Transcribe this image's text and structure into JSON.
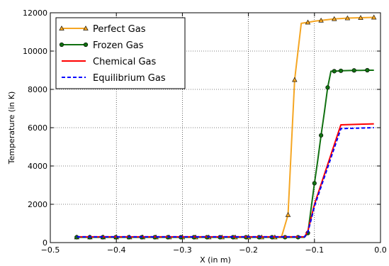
{
  "chart_data": {
    "type": "line",
    "title": "",
    "xlabel": "X (in m)",
    "ylabel": "Temperature (in K)",
    "xlim": [
      -0.5,
      0.0
    ],
    "ylim": [
      0,
      12000
    ],
    "xticks": [
      -0.5,
      -0.4,
      -0.3,
      -0.2,
      -0.1,
      0.0
    ],
    "xtick_labels": [
      "−0.5",
      "−0.4",
      "−0.3",
      "−0.2",
      "−0.1",
      "0.0"
    ],
    "yticks": [
      0,
      2000,
      4000,
      6000,
      8000,
      10000,
      12000
    ],
    "ytick_labels": [
      "0",
      "2000",
      "4000",
      "6000",
      "8000",
      "10000",
      "12000"
    ],
    "grid": true,
    "legend_position": "top-left",
    "series": [
      {
        "name": "Perfect Gas",
        "color": "#f5a623",
        "marker": "triangle",
        "markevery": 2,
        "dashed": false,
        "x": [
          -0.46,
          -0.15,
          -0.14,
          -0.135,
          -0.13,
          -0.12,
          -0.11,
          -0.1,
          -0.09,
          -0.08,
          -0.07,
          -0.06,
          -0.05,
          -0.04,
          -0.03,
          -0.02,
          -0.01
        ],
        "y": [
          280,
          280,
          1450,
          5000,
          8500,
          11450,
          11500,
          11560,
          11600,
          11640,
          11680,
          11700,
          11720,
          11730,
          11740,
          11750,
          11760
        ]
      },
      {
        "name": "Frozen Gas",
        "color": "#107010",
        "marker": "circle",
        "markevery": 2,
        "dashed": false,
        "x": [
          -0.46,
          -0.115,
          -0.11,
          -0.105,
          -0.1,
          -0.095,
          -0.09,
          -0.085,
          -0.08,
          -0.075,
          -0.07,
          -0.065,
          -0.06,
          -0.05,
          -0.04,
          -0.03,
          -0.02,
          -0.01
        ],
        "y": [
          280,
          280,
          500,
          1800,
          3100,
          4300,
          5600,
          6800,
          8100,
          8950,
          8950,
          8960,
          8970,
          8980,
          8990,
          8990,
          9000,
          9000
        ]
      },
      {
        "name": "Chemical Gas",
        "color": "#ff0000",
        "marker": "none",
        "markevery": 1,
        "dashed": false,
        "x": [
          -0.46,
          -0.115,
          -0.11,
          -0.105,
          -0.1,
          -0.06,
          -0.01
        ],
        "y": [
          300,
          300,
          600,
          1300,
          2000,
          6150,
          6200
        ]
      },
      {
        "name": "Equilibrium Gas",
        "color": "#0000ff",
        "marker": "none",
        "markevery": 1,
        "dashed": true,
        "x": [
          -0.46,
          -0.115,
          -0.11,
          -0.105,
          -0.1,
          -0.06,
          -0.01
        ],
        "y": [
          300,
          300,
          550,
          1200,
          1900,
          5950,
          6000
        ]
      }
    ]
  }
}
